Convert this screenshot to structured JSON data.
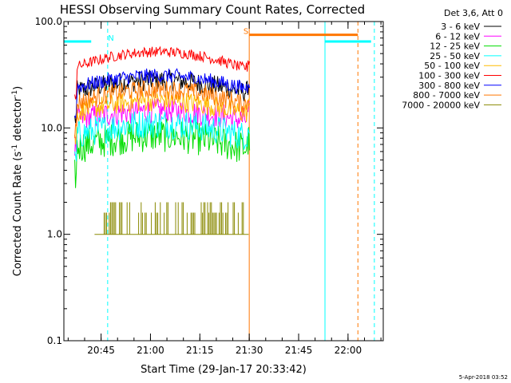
{
  "chart_data": {
    "type": "line",
    "title": "HESSI Observing Summary Count Rates, Corrected",
    "xlabel": "Start Time (29-Jan-17 20:33:42)",
    "ylabel_main": "Corrected Count Rate (s",
    "ylabel_sup": "-1",
    "ylabel_end": " detector",
    "ylabel_close": ")",
    "y_scale": "log",
    "ylim": [
      0.1,
      100
    ],
    "xlim": [
      "20:33:42",
      "22:10:42"
    ],
    "y_ticks": [
      {
        "v": 100,
        "label": "100.0"
      },
      {
        "v": 10,
        "label": "10.0"
      },
      {
        "v": 1,
        "label": "1.0"
      },
      {
        "v": 0.1,
        "label": "0.1"
      }
    ],
    "x_ticks": [
      {
        "t": "20:45",
        "label": "20:45"
      },
      {
        "t": "21:00",
        "label": "21:00"
      },
      {
        "t": "21:15",
        "label": "21:15"
      },
      {
        "t": "21:30",
        "label": "21:30"
      },
      {
        "t": "21:45",
        "label": "21:45"
      },
      {
        "t": "22:00",
        "label": "22:00"
      }
    ],
    "legend_header": "Det 3,6, Att 0",
    "series": [
      {
        "name": "3 - 6 keV",
        "color": "#000000",
        "start": "20:37",
        "end": "21:30",
        "base": 22,
        "amp": 6,
        "noise": 0.1
      },
      {
        "name": "6 - 12 keV",
        "color": "#ff00ff",
        "start": "20:37",
        "end": "21:30",
        "base": 12,
        "amp": 2.5,
        "noise": 0.12
      },
      {
        "name": "12 - 25 keV",
        "color": "#00dd00",
        "start": "20:37",
        "end": "21:30",
        "base": 6.5,
        "amp": 2,
        "noise": 0.16
      },
      {
        "name": "25 - 50 keV",
        "color": "#00ffff",
        "start": "20:37",
        "end": "21:30",
        "base": 8.5,
        "amp": 2.5,
        "noise": 0.14
      },
      {
        "name": "50 - 100 keV",
        "color": "#ffbb00",
        "start": "20:37",
        "end": "21:30",
        "base": 14,
        "amp": 4,
        "noise": 0.1
      },
      {
        "name": "100 - 300 keV",
        "color": "#ff0000",
        "start": "20:37",
        "end": "21:30",
        "base": 37,
        "amp": 15,
        "noise": 0.05
      },
      {
        "name": "300 - 800 keV",
        "color": "#0000ff",
        "start": "20:37",
        "end": "21:30",
        "base": 24,
        "amp": 7,
        "noise": 0.07
      },
      {
        "name": "800 - 7000 keV",
        "color": "#ff7700",
        "start": "20:37",
        "end": "21:30",
        "base": 17,
        "amp": 6,
        "noise": 0.09
      },
      {
        "name": "7000 - 20000 keV",
        "color": "#888800",
        "start": "20:43",
        "end": "21:30",
        "base": 1.0,
        "amp": 0,
        "noise": 0,
        "spiky": true
      }
    ],
    "flags": [
      {
        "label": "N",
        "color": "#00ffff",
        "y": 65,
        "segments": [
          [
            "20:33:42",
            "20:42"
          ],
          [
            "21:53",
            "22:07"
          ]
        ],
        "label_at": "20:48"
      },
      {
        "label": "S",
        "color": "#ff7700",
        "y": 75,
        "segments": [
          [
            "21:30",
            "22:03"
          ]
        ],
        "label_at": "21:29"
      }
    ],
    "vlines": [
      {
        "t": "20:33:42",
        "color": "#00ffff",
        "dash": false
      },
      {
        "t": "20:47",
        "color": "#00ffff",
        "dash": true
      },
      {
        "t": "21:30",
        "color": "#ff7700",
        "dash": false
      },
      {
        "t": "21:53",
        "color": "#00ffff",
        "dash": false
      },
      {
        "t": "22:03",
        "color": "#ff7700",
        "dash": true
      },
      {
        "t": "22:08",
        "color": "#00ffff",
        "dash": true
      }
    ]
  },
  "footer_timestamp": "5-Apr-2018 03:52"
}
